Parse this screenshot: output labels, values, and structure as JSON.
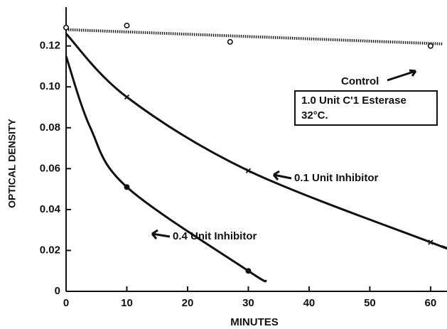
{
  "chart_data": {
    "type": "line",
    "xlabel": "MINUTES",
    "ylabel": "OPTICAL DENSITY",
    "xlim": [
      0,
      62
    ],
    "ylim": [
      0,
      0.139
    ],
    "xticks": [
      0,
      10,
      20,
      30,
      40,
      50,
      60
    ],
    "yticks": [
      0,
      0.02,
      0.04,
      0.06,
      0.08,
      {
        "value": 0.1,
        "label": "0.10"
      },
      0.12
    ],
    "series": [
      {
        "name": "Control",
        "style": "dotted",
        "color": "#222",
        "x": [
          0,
          62
        ],
        "values": [
          0.128,
          0.121
        ],
        "marker": "circle",
        "marker_x": [
          0,
          10,
          27,
          60
        ],
        "marker_values": [
          0.129,
          0.13,
          0.122,
          0.12
        ]
      },
      {
        "name": "0.1 Unit Inhibitor",
        "style": "solid",
        "color": "#111",
        "x": [
          0,
          10,
          30,
          60,
          62
        ],
        "values": [
          0.126,
          0.095,
          0.059,
          0.024,
          0.022
        ],
        "marker": "cross",
        "marker_x": [
          10,
          30,
          60
        ],
        "marker_values": [
          0.095,
          0.059,
          0.024
        ]
      },
      {
        "name": "0.4 Unit Inhibitor",
        "style": "solid",
        "color": "#111",
        "x": [
          0,
          4,
          10,
          30,
          33
        ],
        "values": [
          0.115,
          0.08,
          0.051,
          0.01,
          0.005
        ],
        "marker": "dot",
        "marker_x": [
          10,
          30
        ],
        "marker_values": [
          0.051,
          0.01
        ]
      }
    ],
    "box": [
      "1.0 Unit C'1 Esterase",
      "32°C."
    ]
  }
}
